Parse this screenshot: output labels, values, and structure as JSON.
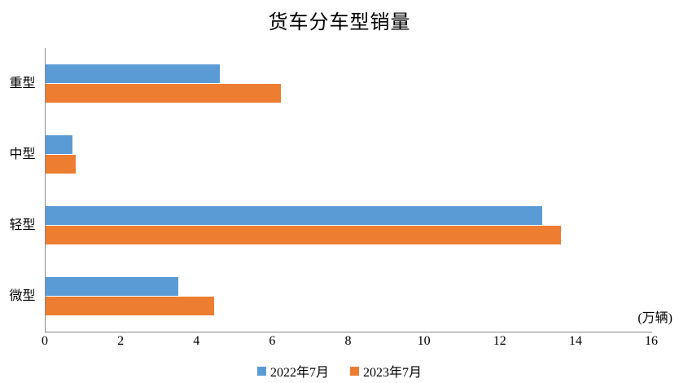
{
  "chart_data": {
    "type": "bar",
    "orientation": "horizontal",
    "title": "货车分车型销量",
    "unit_label": "(万辆)",
    "categories": [
      "重型",
      "中型",
      "轻型",
      "微型"
    ],
    "series": [
      {
        "name": "2022年7月",
        "color": "#5B9BD5",
        "values": [
          4.6,
          0.7,
          13.1,
          3.5
        ]
      },
      {
        "name": "2023年7月",
        "color": "#ED7D31",
        "values": [
          6.2,
          0.8,
          13.6,
          4.45
        ]
      }
    ],
    "x_ticks": [
      0,
      2,
      4,
      6,
      8,
      10,
      12,
      14,
      16
    ],
    "xlim": [
      0,
      16
    ],
    "grid": false,
    "legend_position": "bottom",
    "axis_color": "#898989",
    "text_color": "#000000"
  }
}
